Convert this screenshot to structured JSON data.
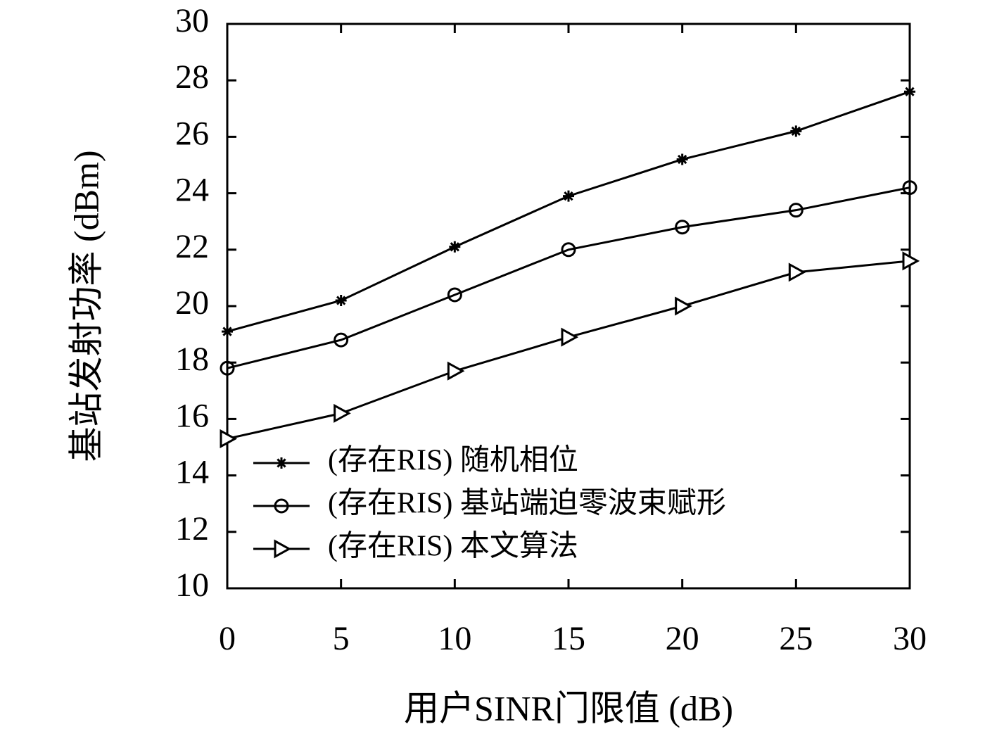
{
  "chart_data": {
    "type": "line",
    "x_label": "用户SINR门限值 (dB)",
    "y_label": "基站发射功率 (dBm)",
    "x": [
      0,
      5,
      10,
      15,
      20,
      25,
      30
    ],
    "series": [
      {
        "name": "(存在RIS) 随机相位",
        "color": "#000000",
        "marker": "star",
        "values": [
          19.1,
          20.2,
          22.1,
          23.9,
          25.2,
          26.2,
          27.6
        ]
      },
      {
        "name": "(存在RIS) 基站端迫零波束赋形",
        "color": "#000000",
        "marker": "circle",
        "values": [
          17.8,
          18.8,
          20.4,
          22.0,
          22.8,
          23.4,
          24.2
        ]
      },
      {
        "name": "(存在RIS) 本文算法",
        "color": "#000000",
        "marker": "triangle-right",
        "values": [
          15.3,
          16.2,
          17.7,
          18.9,
          20.0,
          21.2,
          21.6
        ]
      }
    ],
    "xlim": [
      0,
      30
    ],
    "xticks": [
      0,
      5,
      10,
      15,
      20,
      25,
      30
    ],
    "ylim": [
      10,
      30
    ],
    "yticks": [
      10,
      12,
      14,
      16,
      18,
      20,
      22,
      24,
      26,
      28,
      30
    ],
    "grid": false,
    "legend": "lower left"
  }
}
